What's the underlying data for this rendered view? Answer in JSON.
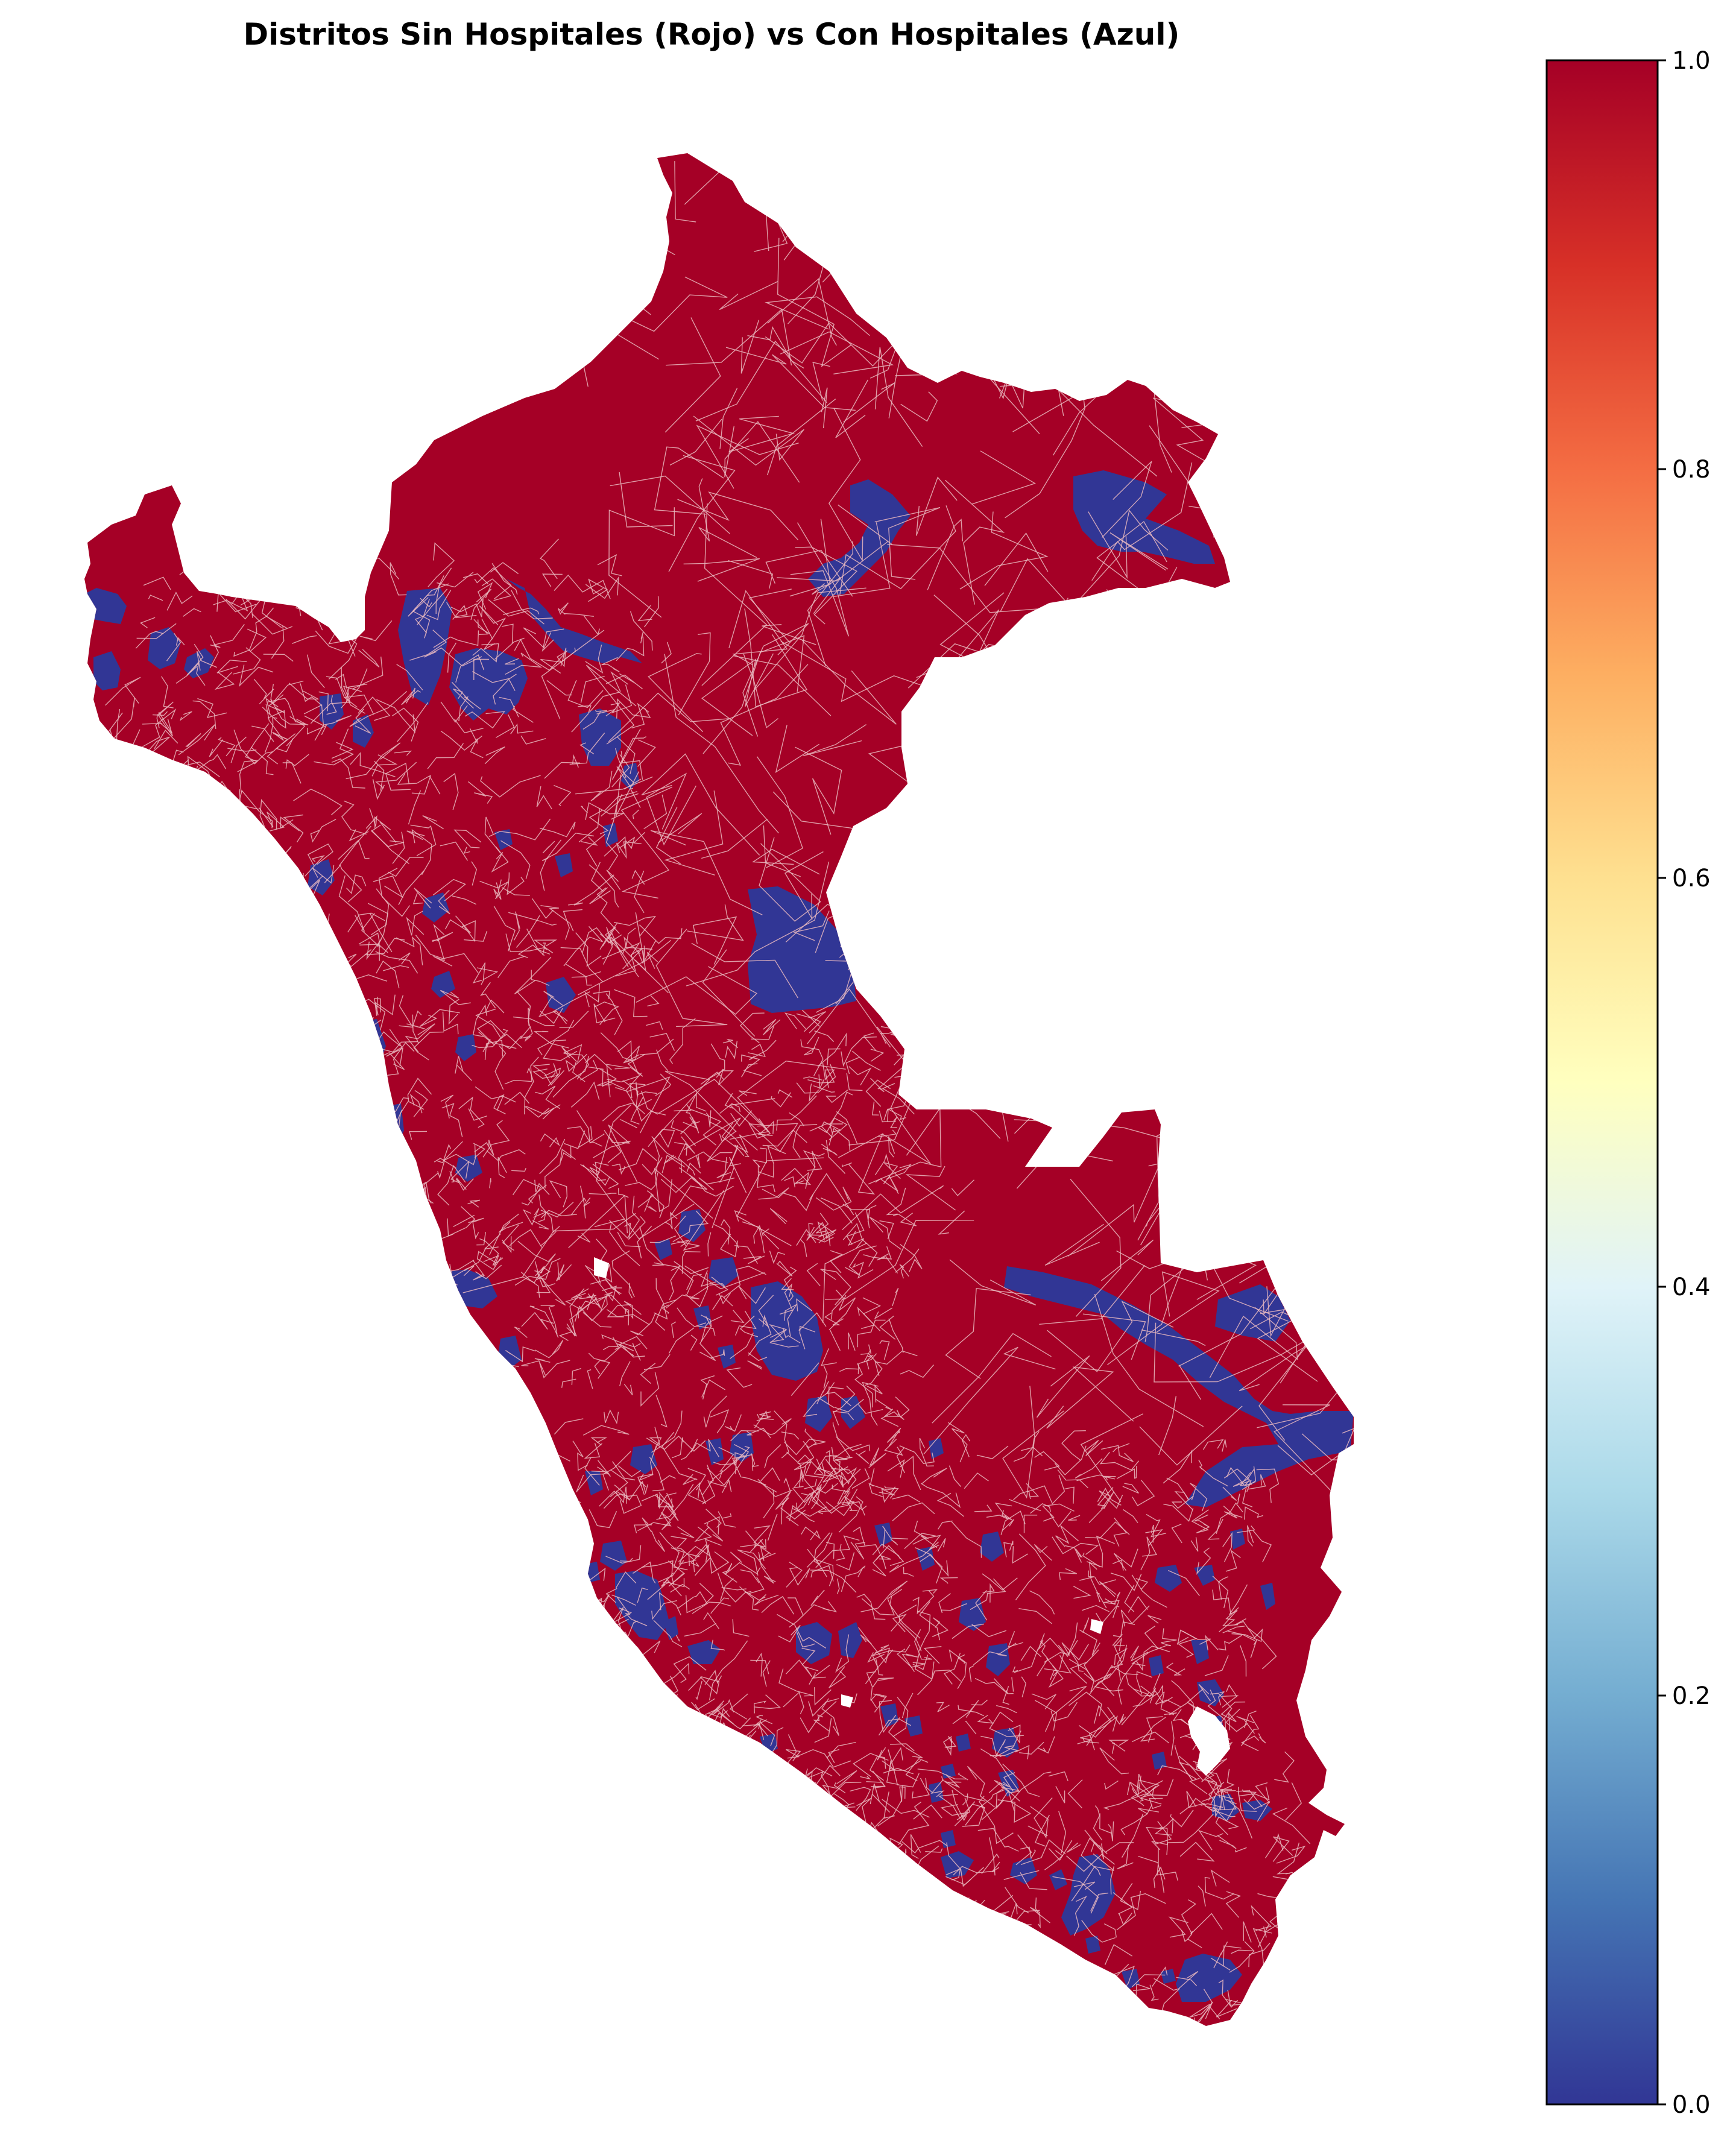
{
  "title": "Distritos Sin Hospitales (Rojo) vs Con Hospitales (Azul)",
  "colors": {
    "without_hospital": "#a50026",
    "with_hospital": "#313695",
    "background": "#ffffff"
  },
  "colormap": {
    "name": "RdYlBu_r",
    "stops": [
      "#313695",
      "#4575b4",
      "#74add1",
      "#abd9e9",
      "#e0f3f8",
      "#ffffbf",
      "#fee090",
      "#fdae61",
      "#f46d43",
      "#d73027",
      "#a50026"
    ]
  },
  "colorbar": {
    "min": 0.0,
    "max": 1.0,
    "ticks": [
      "0.0",
      "0.2",
      "0.4",
      "0.6",
      "0.8",
      "1.0"
    ]
  }
}
